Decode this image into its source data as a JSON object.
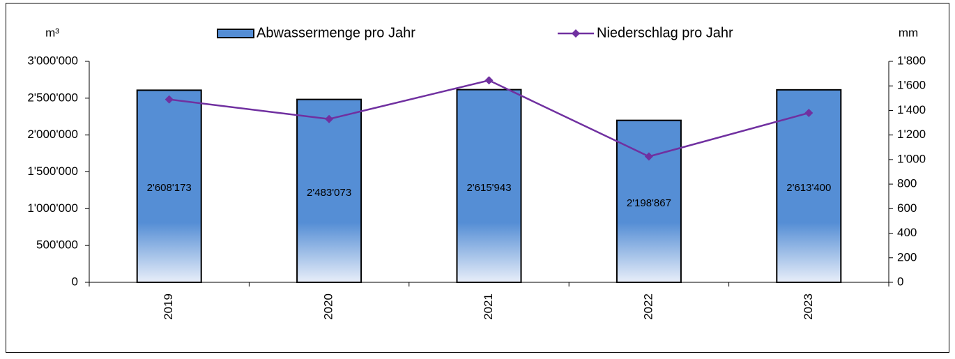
{
  "chart_data": {
    "type": "bar-line",
    "y_label": "m³",
    "y2_label": "mm",
    "categories": [
      "2019",
      "2020",
      "2021",
      "2022",
      "2023"
    ],
    "series": [
      {
        "name": "Abwassermenge pro Jahr",
        "type": "bar",
        "color": "#558ed5",
        "values": [
          2608173,
          2483073,
          2615943,
          2198867,
          2613400
        ],
        "value_labels": [
          "2'608'173",
          "2'483'073",
          "2'615'943",
          "2'198'867",
          "2'613'400"
        ]
      },
      {
        "name": "Niederschlag pro Jahr",
        "type": "line",
        "axis": "y2",
        "color": "#7030a0",
        "values": [
          1490,
          1330,
          1645,
          1025,
          1380
        ]
      }
    ],
    "ylim": [
      0,
      3000000
    ],
    "yticks": [
      0,
      {
        "value": 500000,
        "label": "500'000"
      },
      {
        "value": 1000000,
        "label": "1'000'000"
      },
      {
        "value": 1500000,
        "label": "1'500'000"
      },
      {
        "value": 2000000,
        "label": "2'000'000"
      },
      {
        "value": 2500000,
        "label": "2'500'000"
      },
      {
        "value": 3000000,
        "label": "3'000'000"
      }
    ],
    "y2lim": [
      0,
      1800
    ],
    "y2ticks": [
      0,
      200,
      400,
      600,
      800,
      {
        "value": 1000,
        "label": "1'000"
      },
      {
        "value": 1200,
        "label": "1'200"
      },
      {
        "value": 1400,
        "label": "1'400"
      },
      {
        "value": 1600,
        "label": "1'600"
      },
      {
        "value": 1800,
        "label": "1'800"
      }
    ],
    "grid": false,
    "legend": "top"
  }
}
